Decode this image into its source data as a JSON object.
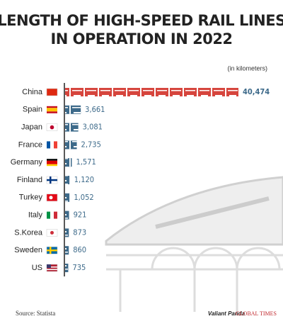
{
  "chart_data": {
    "type": "bar",
    "orientation": "horizontal",
    "title": [
      "LENGTH OF HIGH-SPEED RAIL LINES",
      "IN OPERATION IN 2022"
    ],
    "subtitle": "(in kilometers)",
    "categories": [
      "China",
      "Spain",
      "Japan",
      "France",
      "Germany",
      "Finland",
      "Turkey",
      "Italy",
      "S.Korea",
      "Sweden",
      "US"
    ],
    "values": [
      40474,
      3661,
      3081,
      2735,
      1571,
      1120,
      1052,
      921,
      873,
      860,
      735
    ],
    "value_labels": [
      "40,474",
      "3,661",
      "3,081",
      "2,735",
      "1,571",
      "1,120",
      "1,052",
      "921",
      "873",
      "860",
      "735"
    ],
    "colors": [
      "#d6453d",
      "#3d6a8a",
      "#3d6a8a",
      "#3d6a8a",
      "#3d6a8a",
      "#3d6a8a",
      "#3d6a8a",
      "#3d6a8a",
      "#3d6a8a",
      "#3d6a8a",
      "#3d6a8a"
    ],
    "source": "Source: Statista",
    "credits": [
      "Valiant Panda",
      "GLOBAL TIMES"
    ]
  }
}
